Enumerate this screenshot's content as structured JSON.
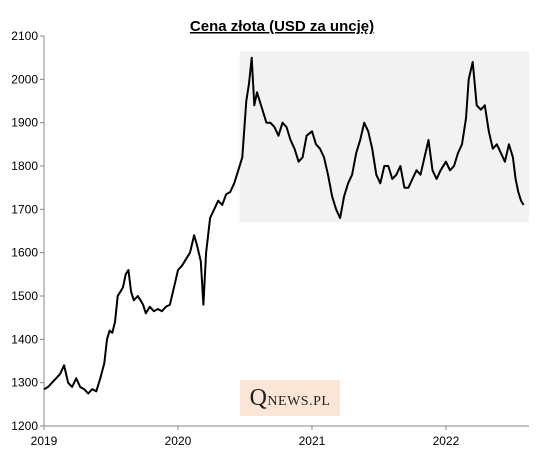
{
  "chart_data": {
    "type": "line",
    "title": "Cena złota (USD za uncję)",
    "xlabel": "",
    "ylabel": "",
    "xlim": [
      2019.0,
      2022.62
    ],
    "ylim": [
      1200,
      2100
    ],
    "y_ticks": [
      1200,
      1300,
      1400,
      1500,
      1600,
      1700,
      1800,
      1900,
      2000,
      2100
    ],
    "x_ticks": [
      {
        "value": 2019,
        "label": "2019"
      },
      {
        "value": 2020,
        "label": "2020"
      },
      {
        "value": 2021,
        "label": "2021"
      },
      {
        "value": 2022,
        "label": "2022"
      }
    ],
    "grid": false,
    "legend": "none",
    "line_color": "#000000",
    "highlight": {
      "x_start": 2020.46,
      "x_end": 2022.62,
      "y_start": 1670,
      "y_end": 2065,
      "color": "#f2f2f2"
    },
    "series": [
      {
        "name": "",
        "x": [
          2019.0,
          2019.03,
          2019.06,
          2019.09,
          2019.12,
          2019.15,
          2019.18,
          2019.21,
          2019.24,
          2019.27,
          2019.3,
          2019.33,
          2019.36,
          2019.39,
          2019.42,
          2019.45,
          2019.47,
          2019.49,
          2019.51,
          2019.53,
          2019.55,
          2019.57,
          2019.59,
          2019.61,
          2019.63,
          2019.65,
          2019.67,
          2019.7,
          2019.72,
          2019.74,
          2019.76,
          2019.79,
          2019.82,
          2019.85,
          2019.88,
          2019.91,
          2019.94,
          2019.97,
          2020.0,
          2020.03,
          2020.06,
          2020.09,
          2020.12,
          2020.14,
          2020.17,
          2020.19,
          2020.21,
          2020.24,
          2020.27,
          2020.3,
          2020.33,
          2020.36,
          2020.39,
          2020.42,
          2020.45,
          2020.48,
          2020.51,
          2020.53,
          2020.55,
          2020.57,
          2020.59,
          2020.61,
          2020.63,
          2020.66,
          2020.69,
          2020.72,
          2020.75,
          2020.78,
          2020.81,
          2020.84,
          2020.87,
          2020.9,
          2020.93,
          2020.96,
          2021.0,
          2021.03,
          2021.06,
          2021.09,
          2021.12,
          2021.15,
          2021.18,
          2021.21,
          2021.24,
          2021.27,
          2021.3,
          2021.33,
          2021.36,
          2021.39,
          2021.42,
          2021.45,
          2021.48,
          2021.51,
          2021.54,
          2021.57,
          2021.6,
          2021.63,
          2021.66,
          2021.69,
          2021.72,
          2021.75,
          2021.78,
          2021.81,
          2021.84,
          2021.87,
          2021.9,
          2021.93,
          2021.96,
          2022.0,
          2022.03,
          2022.06,
          2022.09,
          2022.12,
          2022.15,
          2022.17,
          2022.2,
          2022.23,
          2022.26,
          2022.29,
          2022.32,
          2022.35,
          2022.38,
          2022.41,
          2022.44,
          2022.47,
          2022.5,
          2022.52,
          2022.54,
          2022.56,
          2022.58
        ],
        "values": [
          1285,
          1290,
          1300,
          1310,
          1320,
          1340,
          1300,
          1290,
          1310,
          1290,
          1285,
          1275,
          1285,
          1280,
          1310,
          1345,
          1400,
          1420,
          1415,
          1440,
          1500,
          1510,
          1520,
          1550,
          1560,
          1510,
          1490,
          1500,
          1490,
          1480,
          1460,
          1475,
          1465,
          1470,
          1465,
          1475,
          1480,
          1520,
          1560,
          1570,
          1585,
          1600,
          1640,
          1620,
          1580,
          1480,
          1600,
          1680,
          1700,
          1720,
          1710,
          1735,
          1740,
          1760,
          1790,
          1820,
          1950,
          1990,
          2050,
          1940,
          1970,
          1950,
          1930,
          1900,
          1900,
          1890,
          1870,
          1900,
          1890,
          1860,
          1840,
          1810,
          1820,
          1870,
          1880,
          1850,
          1840,
          1820,
          1780,
          1730,
          1700,
          1680,
          1730,
          1760,
          1780,
          1830,
          1860,
          1900,
          1880,
          1840,
          1780,
          1760,
          1800,
          1800,
          1770,
          1780,
          1800,
          1750,
          1750,
          1770,
          1790,
          1780,
          1820,
          1860,
          1790,
          1770,
          1790,
          1810,
          1790,
          1800,
          1830,
          1850,
          1910,
          2000,
          2040,
          1940,
          1930,
          1940,
          1880,
          1840,
          1850,
          1830,
          1810,
          1850,
          1820,
          1770,
          1740,
          1720,
          1710
        ]
      }
    ]
  },
  "watermark": {
    "initial": "Q",
    "rest": "NEWS.PL"
  }
}
